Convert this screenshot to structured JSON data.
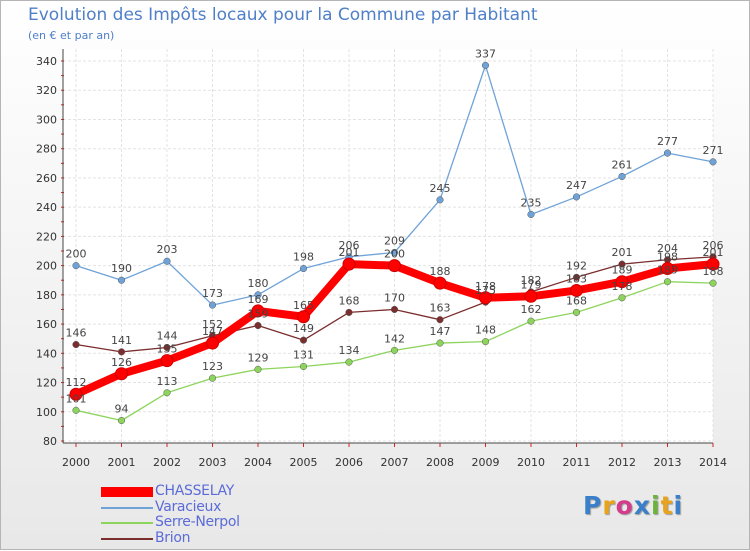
{
  "title": "Evolution des Impôts locaux pour la Commune par Habitant",
  "subtitle": "(en € et par an)",
  "logo": {
    "text": "Proxiti",
    "colors": [
      "#3a7fc9",
      "#e8a21b",
      "#d43b8c",
      "#3a7fc9",
      "#6bb33b",
      "#e8a21b",
      "#3a7fc9"
    ]
  },
  "chart_data": {
    "type": "line",
    "x": [
      "2000",
      "2001",
      "2002",
      "2003",
      "2004",
      "2005",
      "2006",
      "2007",
      "2008",
      "2009",
      "2010",
      "2011",
      "2012",
      "2013",
      "2014"
    ],
    "y_ticks": [
      "80",
      "100",
      "120",
      "140",
      "160",
      "180",
      "200",
      "220",
      "240",
      "260",
      "280",
      "300",
      "320",
      "340"
    ],
    "ylim": [
      80,
      340
    ],
    "grid": true,
    "legend_position": "bottom-left",
    "series": [
      {
        "name": "Varacieux",
        "color": "#6fa3d8",
        "values": [
          200,
          190,
          203,
          173,
          180,
          198,
          206,
          209,
          245,
          337,
          235,
          247,
          261,
          277,
          271
        ]
      },
      {
        "name": "Serre-Nerpol",
        "color": "#8dd45c",
        "values": [
          101,
          94,
          113,
          123,
          129,
          131,
          134,
          142,
          147,
          148,
          162,
          168,
          178,
          189,
          188
        ]
      },
      {
        "name": "Brion",
        "color": "#7b2e2e",
        "values": [
          146,
          141,
          144,
          152,
          159,
          149,
          168,
          170,
          163,
          175,
          182,
          192,
          201,
          204,
          206
        ]
      },
      {
        "name": "CHASSELAY",
        "color": "#ff0000",
        "values": [
          112,
          126,
          135,
          147,
          169,
          165,
          201,
          200,
          188,
          178,
          179,
          183,
          189,
          198,
          201
        ]
      }
    ]
  }
}
